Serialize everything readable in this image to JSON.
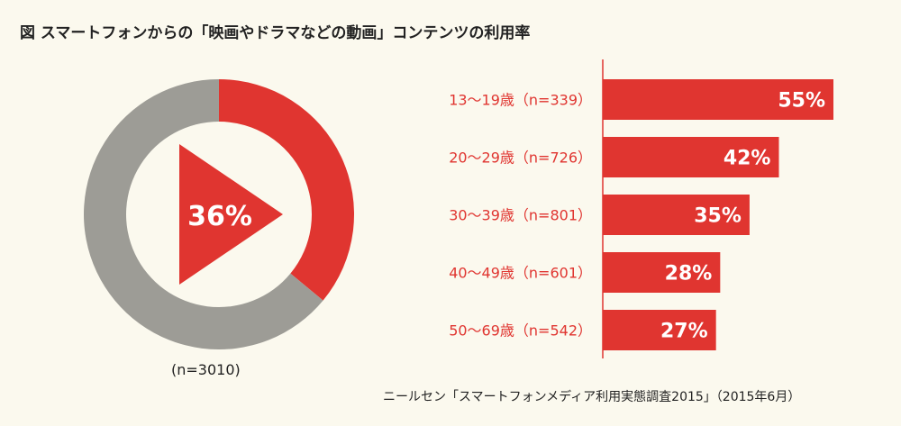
{
  "title": "図 スマートフォンからの「映画やドラマなどの動画」コンテンツの利用率",
  "donut": {
    "value_label": "36%",
    "value": 36,
    "n_label": "(n=3010)",
    "colors": {
      "value": "#e03530",
      "rest": "#9d9c96",
      "icon": "#e03530",
      "label": "#ffffff"
    }
  },
  "chart_data": {
    "type": "bar",
    "orientation": "horizontal",
    "categories": [
      "13〜19歳（n=339）",
      "20〜29歳（n=726）",
      "30〜39歳（n=801）",
      "40〜49歳（n=601）",
      "50〜69歳（n=542）"
    ],
    "values": [
      55,
      42,
      35,
      28,
      27
    ],
    "value_labels": [
      "55%",
      "42%",
      "35%",
      "28%",
      "27%"
    ],
    "xlim": [
      0,
      100
    ],
    "bar_color": "#e03530",
    "category_color": "#e03530",
    "axis_color": "#e03530",
    "label_color": "#ffffff"
  },
  "source": "ニールセン「スマートフォンメディア利用実態調査2015」（2015年6月）"
}
